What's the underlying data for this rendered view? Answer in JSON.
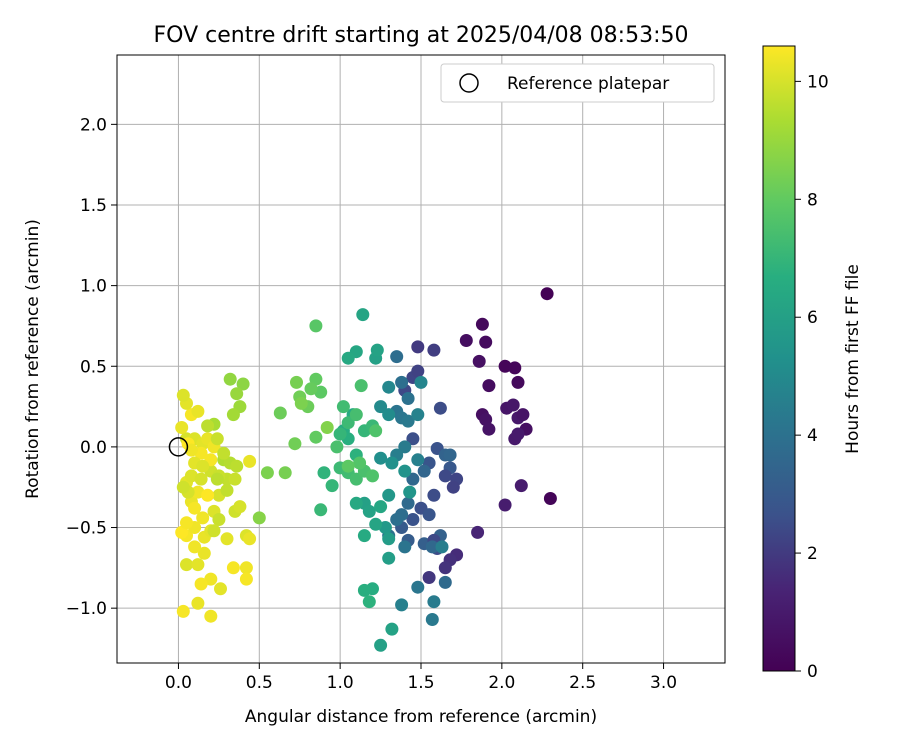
{
  "chart_data": {
    "type": "scatter",
    "title": "FOV centre drift starting at 2025/04/08 08:53:50",
    "xlabel": "Angular distance from reference (arcmin)",
    "ylabel": "Rotation from reference (arcmin)",
    "xlim": [
      -0.38,
      3.38
    ],
    "ylim": [
      -1.34,
      2.43
    ],
    "xticks": [
      "0.0",
      "0.5",
      "1.0",
      "1.5",
      "2.0",
      "2.5",
      "3.0"
    ],
    "yticks": [
      "−1.0",
      "−0.5",
      "0.0",
      "0.5",
      "1.0",
      "1.5",
      "2.0"
    ],
    "grid": true,
    "legend": {
      "position": "top-right",
      "entries": [
        "Reference platepar"
      ]
    },
    "reference_point": {
      "x": 0.0,
      "y": 0.0
    },
    "colorbar": {
      "label": "Hours from first FF file",
      "range": [
        0,
        10.6
      ],
      "ticks": [
        "0",
        "2",
        "4",
        "6",
        "8",
        "10"
      ],
      "colormap": "viridis"
    },
    "points": [
      [
        2.28,
        0.95,
        0.05
      ],
      [
        1.88,
        0.76,
        0.3
      ],
      [
        1.9,
        0.65,
        0.4
      ],
      [
        1.78,
        0.66,
        0.5
      ],
      [
        1.86,
        0.53,
        0.6
      ],
      [
        2.02,
        0.5,
        0.2
      ],
      [
        2.08,
        0.49,
        0.25
      ],
      [
        1.92,
        0.38,
        0.45
      ],
      [
        2.1,
        0.4,
        0.35
      ],
      [
        1.88,
        0.2,
        0.55
      ],
      [
        1.9,
        0.17,
        0.65
      ],
      [
        1.92,
        0.11,
        0.7
      ],
      [
        2.03,
        0.24,
        0.8
      ],
      [
        2.07,
        0.26,
        0.85
      ],
      [
        2.1,
        0.18,
        0.9
      ],
      [
        2.13,
        0.2,
        0.75
      ],
      [
        2.15,
        0.11,
        0.6
      ],
      [
        2.08,
        0.05,
        0.95
      ],
      [
        2.1,
        0.08,
        1.0
      ],
      [
        2.12,
        -0.24,
        1.05
      ],
      [
        2.02,
        -0.36,
        1.1
      ],
      [
        2.3,
        -0.32,
        0.15
      ],
      [
        1.85,
        -0.53,
        1.4
      ],
      [
        1.72,
        -0.67,
        1.6
      ],
      [
        1.68,
        -0.7,
        1.7
      ],
      [
        1.65,
        -0.75,
        1.8
      ],
      [
        1.55,
        -0.81,
        1.9
      ],
      [
        1.48,
        0.62,
        2.0
      ],
      [
        1.58,
        0.6,
        2.1
      ],
      [
        1.45,
        0.43,
        2.3
      ],
      [
        1.4,
        0.35,
        2.4
      ],
      [
        1.48,
        0.47,
        2.2
      ],
      [
        1.62,
        0.24,
        2.5
      ],
      [
        1.45,
        0.05,
        2.6
      ],
      [
        1.6,
        -0.01,
        2.7
      ],
      [
        1.55,
        -0.1,
        2.8
      ],
      [
        1.68,
        -0.13,
        2.9
      ],
      [
        1.65,
        -0.18,
        2.4
      ],
      [
        1.72,
        -0.2,
        2.3
      ],
      [
        1.7,
        -0.25,
        2.2
      ],
      [
        1.58,
        -0.3,
        2.5
      ],
      [
        1.5,
        -0.38,
        2.6
      ],
      [
        1.45,
        -0.45,
        2.7
      ],
      [
        1.55,
        -0.42,
        2.8
      ],
      [
        1.38,
        -0.5,
        3.0
      ],
      [
        1.42,
        -0.58,
        3.1
      ],
      [
        1.52,
        -0.6,
        3.2
      ],
      [
        1.62,
        -0.55,
        3.3
      ],
      [
        1.58,
        -0.58,
        2.4
      ],
      [
        1.6,
        -0.63,
        2.5
      ],
      [
        1.65,
        -0.05,
        3.4
      ],
      [
        1.68,
        -0.05,
        3.5
      ],
      [
        1.57,
        -0.62,
        3.6
      ],
      [
        1.65,
        -0.84,
        3.7
      ],
      [
        1.35,
        0.56,
        3.8
      ],
      [
        1.38,
        0.4,
        3.9
      ],
      [
        1.42,
        0.3,
        4.0
      ],
      [
        1.35,
        0.22,
        4.1
      ],
      [
        1.38,
        0.18,
        4.2
      ],
      [
        1.42,
        0.16,
        4.3
      ],
      [
        1.4,
        0.0,
        4.4
      ],
      [
        1.35,
        -0.05,
        4.5
      ],
      [
        1.48,
        -0.08,
        4.6
      ],
      [
        1.52,
        -0.15,
        3.5
      ],
      [
        1.45,
        -0.2,
        3.6
      ],
      [
        1.42,
        -0.35,
        3.7
      ],
      [
        1.38,
        -0.42,
        3.8
      ],
      [
        1.35,
        -0.45,
        3.9
      ],
      [
        1.3,
        -0.55,
        4.0
      ],
      [
        1.4,
        -0.62,
        4.1
      ],
      [
        1.48,
        -0.87,
        4.2
      ],
      [
        1.57,
        -1.07,
        4.3
      ],
      [
        1.58,
        -0.96,
        4.4
      ],
      [
        1.63,
        -0.62,
        4.5
      ],
      [
        1.38,
        -0.98,
        4.6
      ],
      [
        1.48,
        0.2,
        4.7
      ],
      [
        1.5,
        0.4,
        4.8
      ],
      [
        1.3,
        0.37,
        4.9
      ],
      [
        1.25,
        0.25,
        5.0
      ],
      [
        1.3,
        0.2,
        5.1
      ],
      [
        1.25,
        -0.07,
        5.2
      ],
      [
        1.32,
        -0.1,
        5.3
      ],
      [
        1.4,
        -0.15,
        5.4
      ],
      [
        1.43,
        -0.28,
        5.5
      ],
      [
        1.3,
        -0.3,
        5.6
      ],
      [
        1.28,
        -0.5,
        5.7
      ],
      [
        1.3,
        -0.57,
        5.8
      ],
      [
        1.3,
        -0.69,
        5.9
      ],
      [
        1.22,
        0.55,
        6.0
      ],
      [
        1.23,
        0.6,
        6.1
      ],
      [
        1.14,
        0.82,
        6.2
      ],
      [
        1.1,
        0.59,
        6.3
      ],
      [
        1.05,
        0.55,
        6.4
      ],
      [
        1.08,
        0.2,
        6.5
      ],
      [
        1.02,
        0.1,
        6.6
      ],
      [
        1.05,
        0.05,
        6.7
      ],
      [
        1.1,
        -0.05,
        6.8
      ],
      [
        1.15,
        -0.35,
        6.0
      ],
      [
        1.18,
        -0.4,
        6.1
      ],
      [
        1.22,
        -0.48,
        6.2
      ],
      [
        1.25,
        -0.37,
        6.3
      ],
      [
        1.1,
        -0.35,
        6.4
      ],
      [
        1.15,
        -0.55,
        6.5
      ],
      [
        1.2,
        -0.88,
        6.6
      ],
      [
        1.15,
        -0.89,
        6.7
      ],
      [
        1.18,
        -0.96,
        6.8
      ],
      [
        1.25,
        -1.23,
        6.0
      ],
      [
        1.32,
        -1.13,
        6.1
      ],
      [
        0.9,
        -0.16,
        6.9
      ],
      [
        0.95,
        -0.24,
        7.0
      ],
      [
        0.88,
        -0.39,
        7.1
      ],
      [
        1.0,
        -0.13,
        7.2
      ],
      [
        1.05,
        -0.16,
        7.3
      ],
      [
        1.1,
        -0.2,
        7.4
      ],
      [
        1.15,
        -0.15,
        7.5
      ],
      [
        1.2,
        -0.18,
        7.6
      ],
      [
        1.12,
        -0.1,
        7.7
      ],
      [
        1.15,
        0.1,
        7.0
      ],
      [
        1.2,
        0.13,
        7.1
      ],
      [
        1.05,
        0.15,
        7.2
      ],
      [
        1.02,
        0.25,
        7.3
      ],
      [
        1.1,
        0.2,
        7.4
      ],
      [
        1.13,
        0.38,
        7.5
      ],
      [
        1.22,
        0.1,
        7.6
      ],
      [
        0.98,
        0.0,
        7.5
      ],
      [
        1.05,
        -0.12,
        7.9
      ],
      [
        1.0,
        0.08,
        7.0
      ],
      [
        0.85,
        0.75,
        7.8
      ],
      [
        0.88,
        0.34,
        7.9
      ],
      [
        0.85,
        0.42,
        8.0
      ],
      [
        0.82,
        0.36,
        8.1
      ],
      [
        0.8,
        0.25,
        8.2
      ],
      [
        0.75,
        0.31,
        8.3
      ],
      [
        0.73,
        0.4,
        8.4
      ],
      [
        0.76,
        0.27,
        8.5
      ],
      [
        0.92,
        0.12,
        8.6
      ],
      [
        0.63,
        0.21,
        8.2
      ],
      [
        0.72,
        0.02,
        8.3
      ],
      [
        0.85,
        0.06,
        8.0
      ],
      [
        0.66,
        -0.16,
        8.4
      ],
      [
        0.55,
        -0.16,
        8.5
      ],
      [
        0.5,
        -0.44,
        8.7
      ],
      [
        0.4,
        0.39,
        8.8
      ],
      [
        0.32,
        0.42,
        8.9
      ],
      [
        0.36,
        0.33,
        9.0
      ],
      [
        0.38,
        0.25,
        9.1
      ],
      [
        0.34,
        0.2,
        9.2
      ],
      [
        0.22,
        0.14,
        9.3
      ],
      [
        0.28,
        -0.08,
        9.4
      ],
      [
        0.32,
        -0.1,
        9.5
      ],
      [
        0.36,
        -0.12,
        9.6
      ],
      [
        0.3,
        -0.2,
        9.7
      ],
      [
        0.35,
        -0.2,
        9.8
      ],
      [
        0.35,
        -0.4,
        9.9
      ],
      [
        0.38,
        -0.37,
        10.0
      ],
      [
        0.42,
        -0.55,
        10.1
      ],
      [
        0.3,
        -0.57,
        10.2
      ],
      [
        0.44,
        -0.57,
        10.3
      ],
      [
        0.42,
        -0.75,
        10.4
      ],
      [
        0.34,
        -0.75,
        10.5
      ],
      [
        0.42,
        -0.82,
        10.5
      ],
      [
        0.44,
        -0.09,
        10.3
      ],
      [
        0.2,
        -0.82,
        10.4
      ],
      [
        0.14,
        -0.85,
        10.5
      ],
      [
        0.26,
        -0.88,
        10.2
      ],
      [
        0.12,
        -0.97,
        10.3
      ],
      [
        0.2,
        -1.05,
        10.4
      ],
      [
        0.03,
        -1.02,
        10.5
      ],
      [
        0.05,
        -0.73,
        10.1
      ],
      [
        0.12,
        -0.73,
        10.2
      ],
      [
        0.16,
        -0.66,
        10.3
      ],
      [
        0.1,
        -0.62,
        10.4
      ],
      [
        0.05,
        -0.55,
        10.5
      ],
      [
        0.02,
        -0.53,
        10.6
      ],
      [
        0.1,
        -0.5,
        10.4
      ],
      [
        0.16,
        -0.56,
        10.3
      ],
      [
        0.2,
        -0.52,
        10.2
      ],
      [
        0.22,
        -0.4,
        10.1
      ],
      [
        0.25,
        -0.3,
        10.0
      ],
      [
        0.08,
        -0.34,
        10.3
      ],
      [
        0.12,
        -0.28,
        10.4
      ],
      [
        0.1,
        -0.38,
        10.5
      ],
      [
        0.18,
        -0.3,
        10.6
      ],
      [
        0.05,
        -0.22,
        10.2
      ],
      [
        0.08,
        -0.18,
        10.1
      ],
      [
        0.14,
        -0.2,
        10.0
      ],
      [
        0.2,
        -0.15,
        9.9
      ],
      [
        0.25,
        -0.18,
        9.8
      ],
      [
        0.3,
        -0.27,
        9.7
      ],
      [
        0.24,
        -0.2,
        9.6
      ],
      [
        0.05,
        0.05,
        10.0
      ],
      [
        0.1,
        0.05,
        10.1
      ],
      [
        0.15,
        0.02,
        10.2
      ],
      [
        0.18,
        0.05,
        10.3
      ],
      [
        0.22,
        0.0,
        10.4
      ],
      [
        0.2,
        -0.08,
        10.5
      ],
      [
        0.14,
        -0.04,
        10.5
      ],
      [
        0.06,
        0.02,
        10.6
      ],
      [
        0.08,
        0.2,
        10.5
      ],
      [
        0.12,
        0.22,
        10.3
      ],
      [
        0.05,
        0.27,
        10.2
      ],
      [
        0.03,
        0.32,
        10.1
      ],
      [
        0.24,
        0.05,
        9.8
      ],
      [
        0.28,
        -0.04,
        9.7
      ],
      [
        0.18,
        0.13,
        9.6
      ],
      [
        0.02,
        0.12,
        10.3
      ],
      [
        0.08,
        -0.02,
        10.4
      ],
      [
        0.1,
        -0.1,
        10.2
      ],
      [
        0.15,
        -0.12,
        10.1
      ],
      [
        0.06,
        -0.28,
        10.0
      ],
      [
        0.03,
        -0.25,
        9.9
      ],
      [
        0.25,
        -0.45,
        9.8
      ],
      [
        0.22,
        -0.52,
        9.9
      ],
      [
        0.05,
        -0.47,
        10.5
      ],
      [
        0.15,
        -0.44,
        10.4
      ]
    ]
  }
}
